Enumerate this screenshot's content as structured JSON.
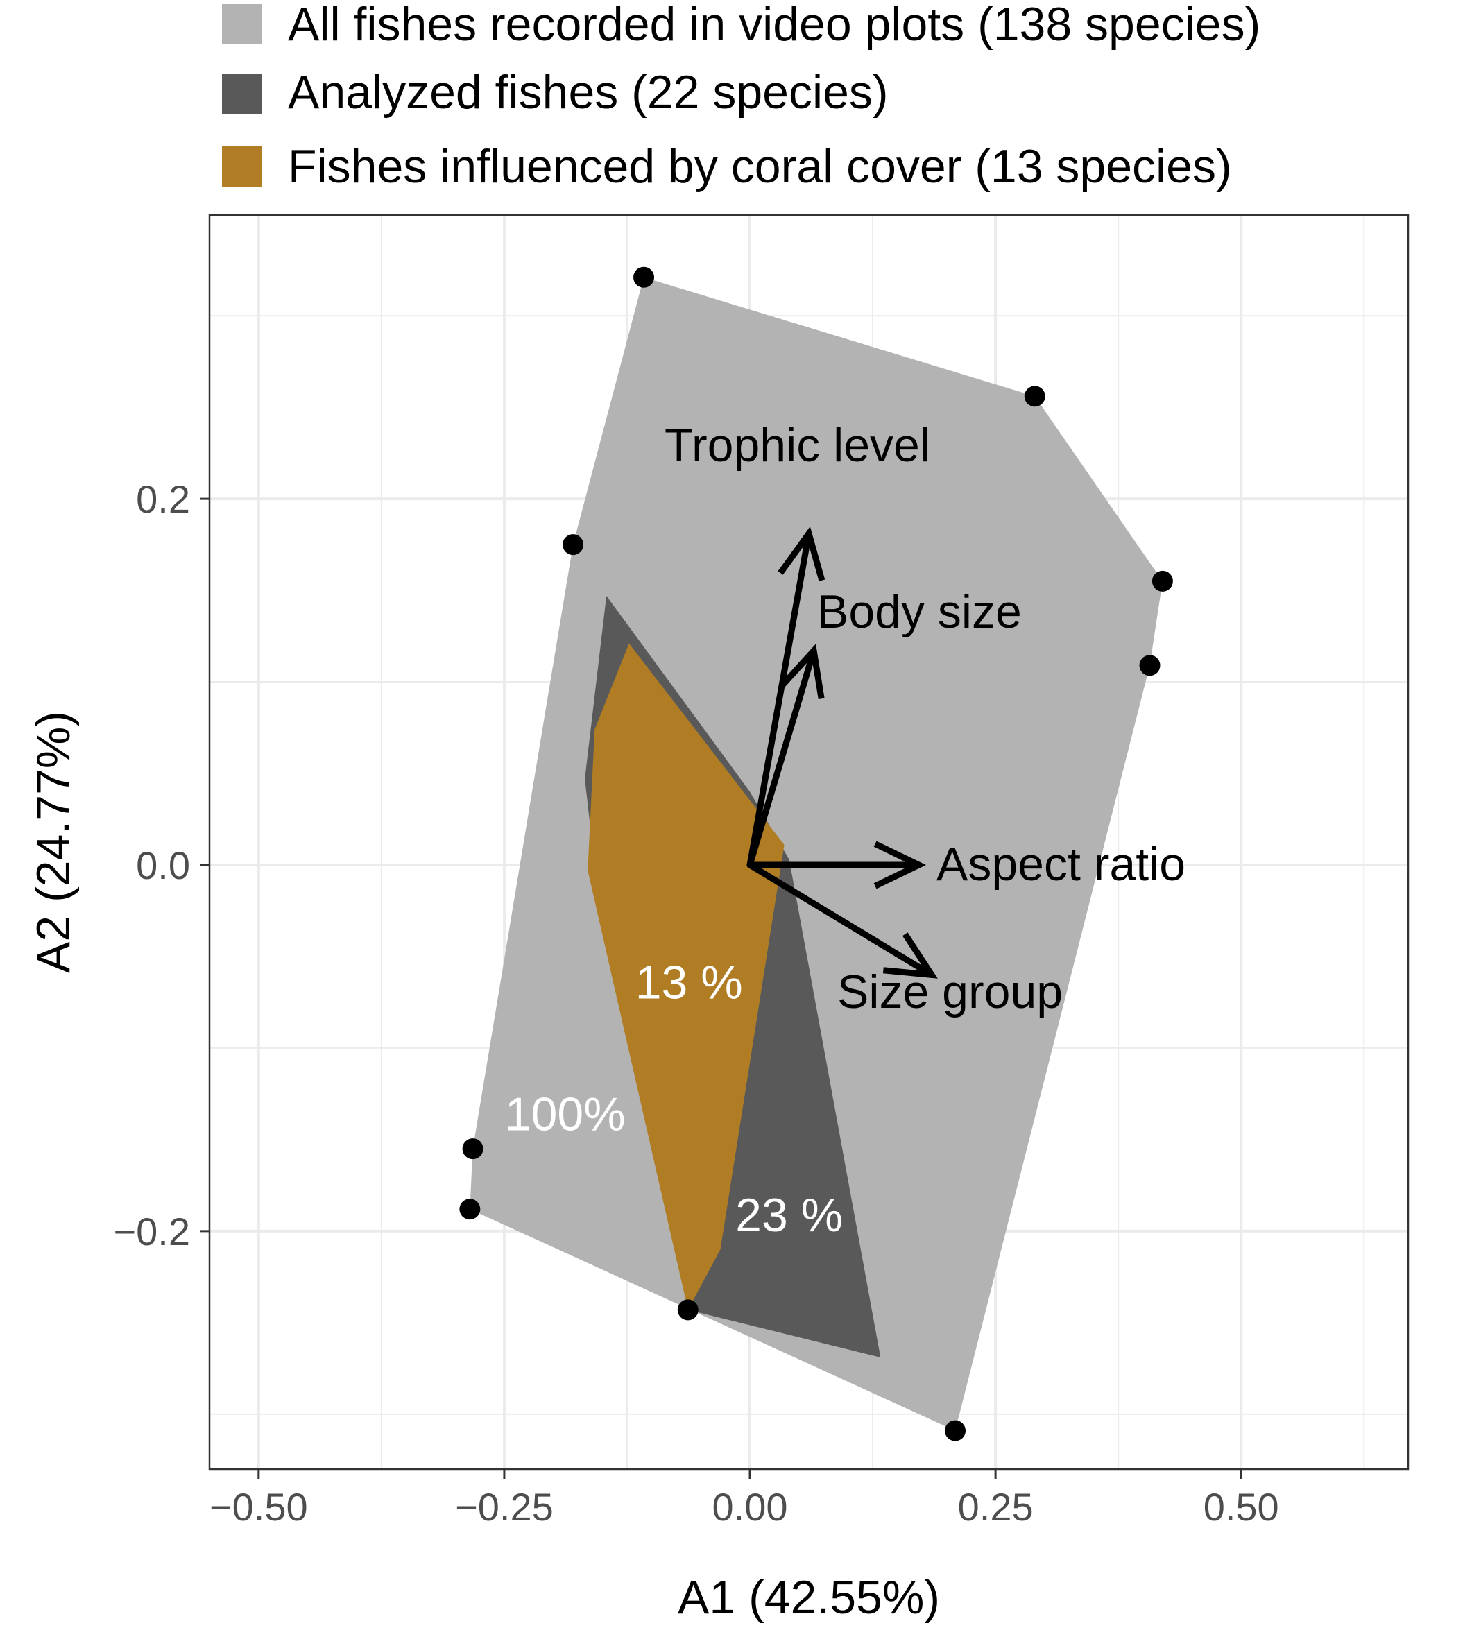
{
  "chart_data": {
    "type": "scatter",
    "xlabel": "A1 (42.55%)",
    "ylabel": "A2 (24.77%)",
    "xlim": [
      -0.55,
      0.67
    ],
    "ylim": [
      -0.33,
      0.355
    ],
    "x_ticks": [
      -0.5,
      -0.25,
      0.0,
      0.25,
      0.5
    ],
    "x_tick_labels": [
      "−0.50",
      "−0.25",
      "0.00",
      "0.25",
      "0.50"
    ],
    "y_ticks": [
      -0.2,
      0.0,
      0.2
    ],
    "y_tick_labels": [
      "−0.2",
      "0.0",
      "0.2"
    ],
    "grid": true,
    "legend_position": "top",
    "legend": [
      {
        "label": "All fishes recorded in video plots (138 species)",
        "color": "#b3b3b3"
      },
      {
        "label": "Analyzed fishes (22 species)",
        "color": "#595959"
      },
      {
        "label": "Fishes influenced by coral cover (13 species)",
        "color": "#b07d24"
      }
    ],
    "hulls": [
      {
        "name": "All fishes recorded in video plots",
        "color": "#b3b3b3",
        "points": [
          [
            -0.108,
            0.321
          ],
          [
            0.29,
            0.256
          ],
          [
            0.42,
            0.155
          ],
          [
            0.407,
            0.109
          ],
          [
            0.209,
            -0.309
          ],
          [
            -0.285,
            -0.188
          ],
          [
            -0.282,
            -0.155
          ],
          [
            -0.18,
            0.175
          ]
        ]
      },
      {
        "name": "Analyzed fishes",
        "color": "#595959",
        "points": [
          [
            -0.146,
            0.147
          ],
          [
            0.0,
            0.04
          ],
          [
            0.04,
            0.003
          ],
          [
            0.133,
            -0.269
          ],
          [
            -0.063,
            -0.243
          ],
          [
            -0.158,
            0.0
          ],
          [
            -0.168,
            0.047
          ]
        ]
      },
      {
        "name": "Fishes influenced by coral cover",
        "color": "#b07d24",
        "points": [
          [
            -0.123,
            0.121
          ],
          [
            0.035,
            0.011
          ],
          [
            -0.03,
            -0.21
          ],
          [
            -0.063,
            -0.243
          ],
          [
            -0.165,
            -0.003
          ],
          [
            -0.158,
            0.074
          ]
        ]
      }
    ],
    "points": [
      {
        "x": -0.108,
        "y": 0.321
      },
      {
        "x": 0.29,
        "y": 0.256
      },
      {
        "x": -0.18,
        "y": 0.175
      },
      {
        "x": 0.42,
        "y": 0.155
      },
      {
        "x": 0.407,
        "y": 0.109
      },
      {
        "x": -0.282,
        "y": -0.155
      },
      {
        "x": -0.285,
        "y": -0.188
      },
      {
        "x": -0.063,
        "y": -0.243
      },
      {
        "x": 0.209,
        "y": -0.309
      }
    ],
    "vectors": [
      {
        "name": "Trophic level",
        "x": 0.06,
        "y": 0.181
      },
      {
        "name": "Body size",
        "x": 0.065,
        "y": 0.117
      },
      {
        "name": "Aspect ratio",
        "x": 0.172,
        "y": 0.0
      },
      {
        "name": "Size group",
        "x": 0.185,
        "y": -0.06
      }
    ],
    "annotations": [
      {
        "text": "13 %",
        "x": -0.062,
        "y": -0.073
      },
      {
        "text": "100%",
        "x": -0.188,
        "y": -0.145
      },
      {
        "text": "23 %",
        "x": 0.04,
        "y": -0.2
      }
    ]
  }
}
